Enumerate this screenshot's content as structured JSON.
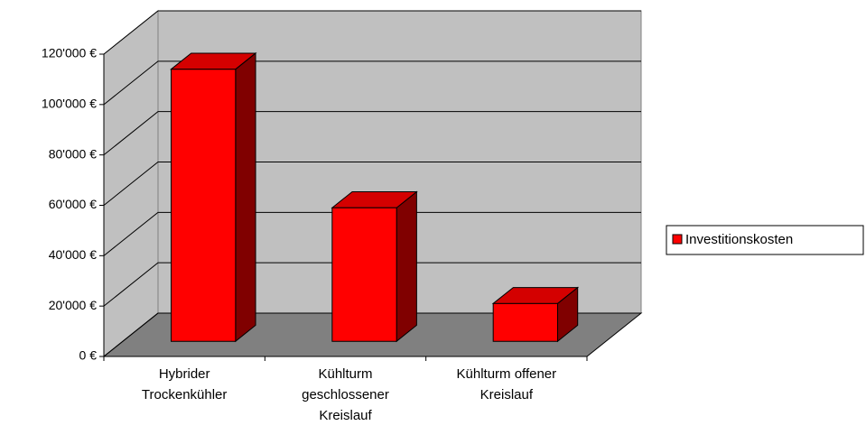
{
  "chart_data": {
    "type": "bar3d",
    "categories": [
      "Hybrider Trockenkühler",
      "Kühlturm geschlossener Kreislauf",
      "Kühlturm offener Kreislauf"
    ],
    "series": [
      {
        "name": "Investitionskosten",
        "color": "#ff0000",
        "values": [
          108000,
          53000,
          15000
        ]
      }
    ],
    "ylim": [
      0,
      120000
    ],
    "yticks": [
      {
        "value": 0,
        "label": "0 €"
      },
      {
        "value": 20000,
        "label": "20'000 €"
      },
      {
        "value": 40000,
        "label": "40'000 €"
      },
      {
        "value": 60000,
        "label": "60'000 €"
      },
      {
        "value": 80000,
        "label": "80'000 €"
      },
      {
        "value": 100000,
        "label": "100'000 €"
      },
      {
        "value": 120000,
        "label": "120'000 €"
      }
    ],
    "grid": true,
    "legend": "right"
  }
}
